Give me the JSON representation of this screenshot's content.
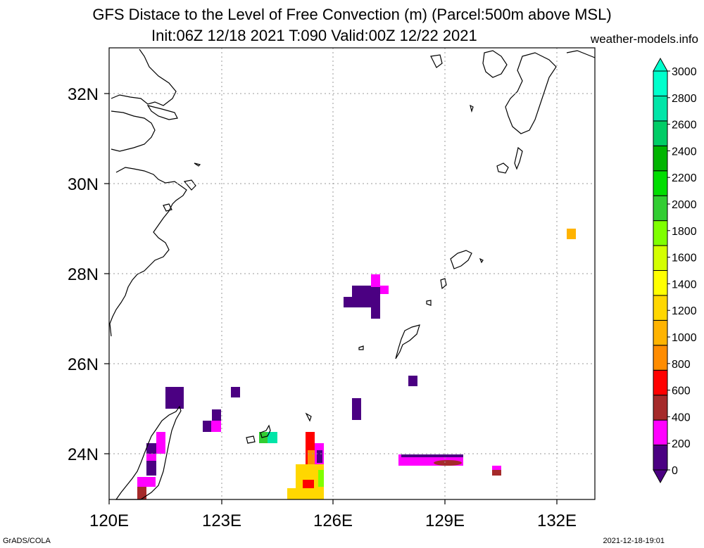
{
  "title": {
    "line1": "GFS Distace to the Level of Free Convection (m) (Parcel:500m above MSL)",
    "line2": "Init:06Z 12/18 2021 T:090 Valid:00Z 12/22 2021",
    "site": "weather-models.info"
  },
  "footer": {
    "left": "GrADS/COLA",
    "right": "2021-12-18-19:01"
  },
  "map": {
    "lon_range": [
      120,
      132.8
    ],
    "lat_range": [
      23,
      33
    ],
    "lon_ticks": [
      {
        "value": 120,
        "label": "120E"
      },
      {
        "value": 123,
        "label": "123E"
      },
      {
        "value": 126,
        "label": "126E"
      },
      {
        "value": 129,
        "label": "129E"
      },
      {
        "value": 132,
        "label": "132E"
      }
    ],
    "lat_ticks": [
      {
        "value": 24,
        "label": "24N"
      },
      {
        "value": 26,
        "label": "26N"
      },
      {
        "value": 28,
        "label": "28N"
      },
      {
        "value": 30,
        "label": "30N"
      },
      {
        "value": 32,
        "label": "32N"
      }
    ],
    "grid": true
  },
  "colorbar": {
    "levels": [
      0,
      200,
      400,
      600,
      800,
      1000,
      1200,
      1400,
      1600,
      1800,
      2000,
      2200,
      2400,
      2600,
      2800,
      3000
    ],
    "colors": [
      "#4b0082",
      "#ff00ff",
      "#a52a2a",
      "#ff0000",
      "#ff8c00",
      "#ffb300",
      "#ffd700",
      "#ffff00",
      "#d4ff00",
      "#7fff00",
      "#32cd32",
      "#00dd00",
      "#00b400",
      "#00cc66",
      "#00e5a8",
      "#00ffcc"
    ]
  }
}
